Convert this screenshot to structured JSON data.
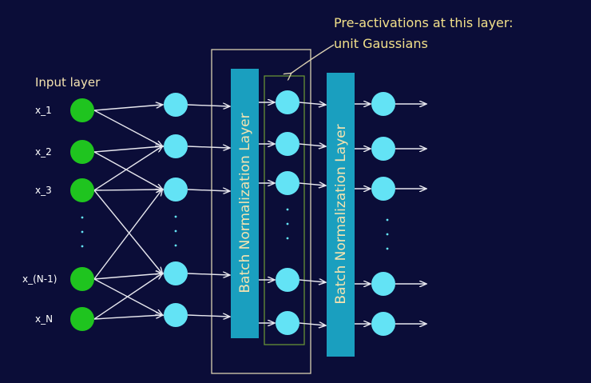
{
  "annotation": "Pre-activations at this layer: unit Gaussians",
  "annotation_lines": [
    "Pre-activations at this layer:",
    "unit Gaussians"
  ],
  "input_layer_label": "Input layer",
  "inputs": [
    "x_1",
    "x_2",
    "x_3",
    "x_(N-1)",
    "x_N"
  ],
  "bn_layer_label": "Batch Normalization Layer",
  "colors": {
    "background": "#0b0d38",
    "input_node": "#1fc41f",
    "hidden_node": "#63e3f5",
    "bn_bar": "#1a9fbf",
    "annotation_text": "#f2e08a",
    "label_text": "#f4e3b0",
    "arrow": "#e8e8ef",
    "outline_box": "#d9cfb1",
    "inner_box": "#6f9a35"
  }
}
